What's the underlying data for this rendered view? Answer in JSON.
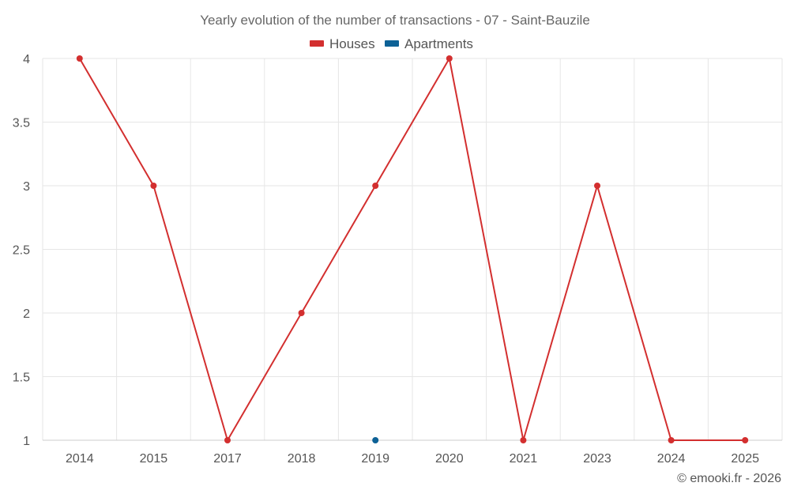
{
  "chart_data": {
    "type": "line",
    "title": "Yearly evolution of the number of transactions - 07 - Saint-Bauzile",
    "categories": [
      "2014",
      "2015",
      "2017",
      "2018",
      "2019",
      "2020",
      "2021",
      "2023",
      "2024",
      "2025"
    ],
    "series": [
      {
        "name": "Houses",
        "color": "#d32f2f",
        "values": [
          4,
          3,
          1,
          2,
          3,
          4,
          1,
          3,
          1,
          1
        ]
      },
      {
        "name": "Apartments",
        "color": "#0d6196",
        "values": [
          null,
          null,
          null,
          null,
          1,
          null,
          null,
          null,
          null,
          null
        ]
      }
    ],
    "ylim": [
      1,
      4
    ],
    "yticks": [
      "1",
      "1.5",
      "2",
      "2.5",
      "3",
      "3.5",
      "4"
    ],
    "grid": true,
    "legend": "top-center",
    "xlabel": "",
    "ylabel": ""
  },
  "credit": "© emooki.fr - 2026"
}
